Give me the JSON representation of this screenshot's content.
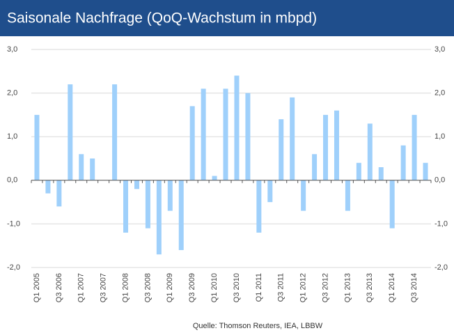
{
  "chart_data": {
    "type": "bar",
    "title": "Saisonale Nachfrage (QoQ-Wachstum in mbpd)",
    "categories": [
      "Q1 2005",
      null,
      "Q3 2006",
      null,
      "Q1 2007",
      null,
      "Q3 2007",
      null,
      "Q1 2008",
      null,
      "Q3 2008",
      null,
      "Q1 2009",
      null,
      "Q3 2009",
      null,
      "Q1 2010",
      null,
      "Q3 2010",
      null,
      "Q1 2011",
      null,
      "Q3 2011",
      null,
      "Q1 2012",
      null,
      "Q3 2012",
      null,
      "Q1 2013",
      null,
      "Q3 2013",
      null,
      "Q1 2014",
      null,
      "Q3 2014",
      null
    ],
    "values": [
      1.5,
      -0.3,
      -0.6,
      2.2,
      0.6,
      0.5,
      0.0,
      2.2,
      -1.2,
      -0.2,
      -1.1,
      -1.7,
      -0.7,
      -1.6,
      1.7,
      2.1,
      0.1,
      2.1,
      2.4,
      2.0,
      -1.2,
      -0.5,
      1.4,
      1.9,
      -0.7,
      0.6,
      1.5,
      1.6,
      -0.7,
      0.4,
      1.3,
      0.3,
      -1.1,
      0.8,
      1.5,
      0.4
    ],
    "color": "#9fd0fb",
    "ylim": [
      -2,
      3
    ],
    "yticks": [
      {
        "value": -2,
        "label": "-2,0"
      },
      {
        "value": -1,
        "label": "-1,0"
      },
      {
        "value": 0,
        "label": "0,0"
      },
      {
        "value": 1,
        "label": "1,0"
      },
      {
        "value": 2,
        "label": "2,0"
      },
      {
        "value": 3,
        "label": "3,0"
      }
    ],
    "y2lim": [
      -2,
      3
    ],
    "y2ticks": [
      {
        "value": -2,
        "label": "-2,0"
      },
      {
        "value": -1,
        "label": "-1,0"
      },
      {
        "value": 0,
        "label": "0,0"
      },
      {
        "value": 1,
        "label": "1,0"
      },
      {
        "value": 2,
        "label": "2,0"
      },
      {
        "value": 3,
        "label": "3,0"
      }
    ],
    "grid": true,
    "source": "Quelle: Thomson Reuters, IEA, LBBW"
  }
}
